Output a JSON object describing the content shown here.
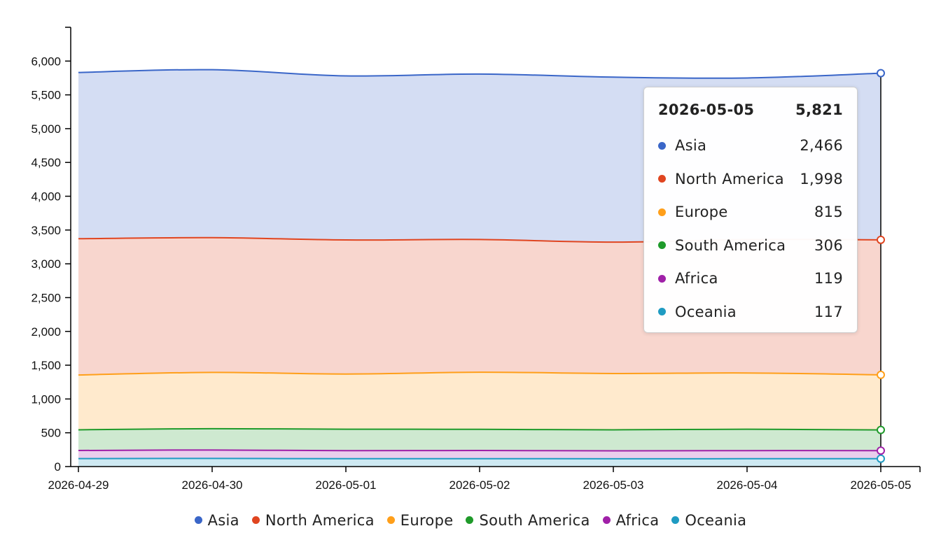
{
  "chart_data": {
    "type": "area",
    "stacked": true,
    "x": [
      "2026-04-29",
      "2026-04-30",
      "2026-05-01",
      "2026-05-02",
      "2026-05-03",
      "2026-05-04",
      "2026-05-05"
    ],
    "y_ticks": [
      "0",
      "500",
      "1,000",
      "1,500",
      "2,000",
      "2,500",
      "3,000",
      "3,500",
      "4,000",
      "4,500",
      "5,000",
      "5,500",
      "6,000"
    ],
    "ylim": [
      0,
      6500
    ],
    "grid": false,
    "legend_position": "bottom",
    "series": [
      {
        "name": "Oceania",
        "color": "#1f9bc2",
        "values": [
          118,
          120,
          116,
          117,
          115,
          116,
          117
        ]
      },
      {
        "name": "Africa",
        "color": "#a020a8",
        "values": [
          120,
          125,
          119,
          121,
          118,
          120,
          119
        ]
      },
      {
        "name": "South America",
        "color": "#1f9a2a",
        "values": [
          306,
          315,
          318,
          313,
          311,
          316,
          306
        ]
      },
      {
        "name": "Europe",
        "color": "#ff9f1a",
        "values": [
          811,
          833,
          816,
          845,
          833,
          833,
          815
        ]
      },
      {
        "name": "North America",
        "color": "#e04520",
        "values": [
          2016,
          1994,
          1984,
          1964,
          1944,
          1975,
          1998
        ]
      },
      {
        "name": "Asia",
        "color": "#3a66c8",
        "values": [
          2460,
          2485,
          2428,
          2448,
          2441,
          2390,
          2466
        ]
      }
    ],
    "legend_order": [
      "Asia",
      "North America",
      "Europe",
      "South America",
      "Africa",
      "Oceania"
    ],
    "tooltip": {
      "date": "2026-05-05",
      "total": "5,821",
      "rows": [
        {
          "name": "Asia",
          "value": "2,466",
          "color": "#3a66c8"
        },
        {
          "name": "North America",
          "value": "1,998",
          "color": "#e04520"
        },
        {
          "name": "Europe",
          "value": "815",
          "color": "#ff9f1a"
        },
        {
          "name": "South America",
          "value": "306",
          "color": "#1f9a2a"
        },
        {
          "name": "Africa",
          "value": "119",
          "color": "#a020a8"
        },
        {
          "name": "Oceania",
          "value": "117",
          "color": "#1f9bc2"
        }
      ]
    }
  }
}
